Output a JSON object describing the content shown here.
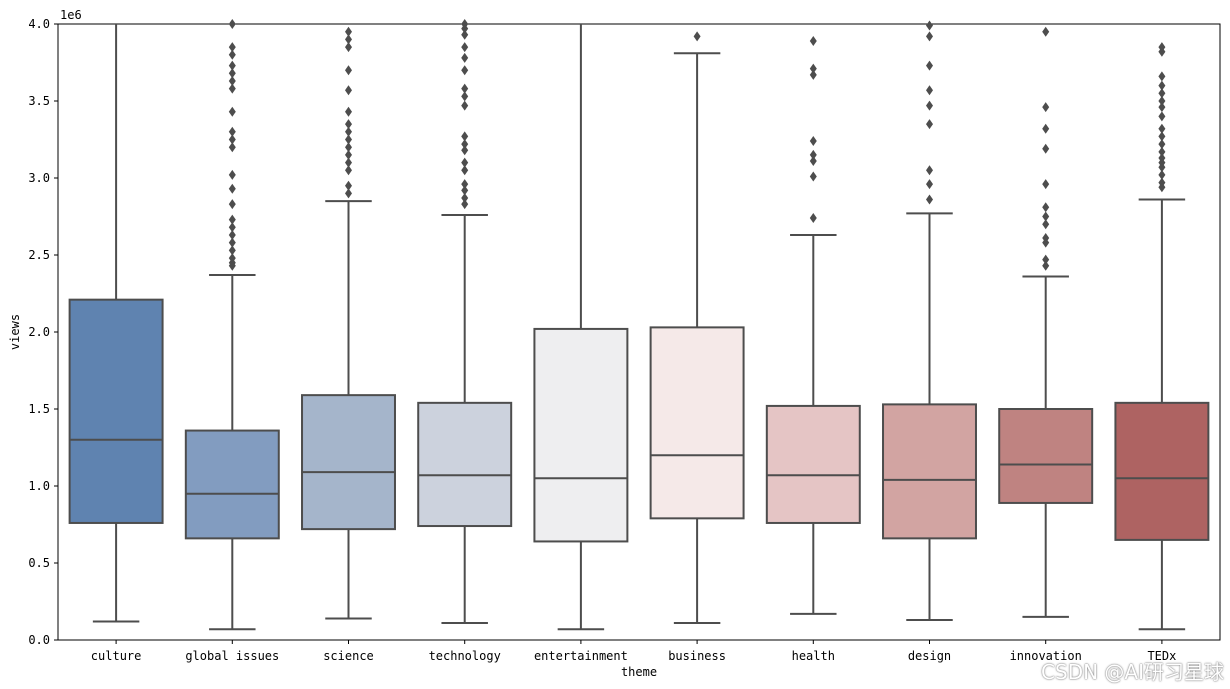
{
  "chart_data": {
    "type": "box",
    "title": "",
    "xlabel": "theme",
    "ylabel": "views",
    "y_offset_label": "1e6",
    "ylim": [
      0,
      4.0
    ],
    "yticks": [
      "0.0",
      "0.5",
      "1.0",
      "1.5",
      "2.0",
      "2.5",
      "3.0",
      "3.5",
      "4.0"
    ],
    "categories": [
      "culture",
      "global issues",
      "science",
      "technology",
      "entertainment",
      "business",
      "health",
      "design",
      "innovation",
      "TEDx"
    ],
    "colors": [
      "#5f83b0",
      "#829cc0",
      "#a5b5cb",
      "#ccd2dd",
      "#eeeef0",
      "#f5e9e8",
      "#e5c5c5",
      "#d2a4a2",
      "#bf8381",
      "#ae6362"
    ],
    "boxes": [
      {
        "name": "culture",
        "q1": 0.76,
        "median": 1.3,
        "q3": 2.21,
        "whisker_low": 0.12,
        "whisker_high": 4.0,
        "outliers": []
      },
      {
        "name": "global issues",
        "q1": 0.66,
        "median": 0.95,
        "q3": 1.36,
        "whisker_low": 0.07,
        "whisker_high": 2.37,
        "outliers": [
          2.43,
          2.45,
          2.48,
          2.53,
          2.58,
          2.63,
          2.68,
          2.73,
          2.83,
          2.93,
          3.02,
          3.2,
          3.25,
          3.3,
          3.43,
          3.58,
          3.63,
          3.68,
          3.73,
          3.8,
          3.85,
          4.0
        ]
      },
      {
        "name": "science",
        "q1": 0.72,
        "median": 1.09,
        "q3": 1.59,
        "whisker_low": 0.14,
        "whisker_high": 2.85,
        "outliers": [
          2.9,
          2.95,
          3.05,
          3.1,
          3.15,
          3.2,
          3.25,
          3.3,
          3.35,
          3.43,
          3.57,
          3.7,
          3.85,
          3.9,
          3.95
        ]
      },
      {
        "name": "technology",
        "q1": 0.74,
        "median": 1.07,
        "q3": 1.54,
        "whisker_low": 0.11,
        "whisker_high": 2.76,
        "outliers": [
          2.83,
          2.87,
          2.92,
          2.96,
          3.05,
          3.1,
          3.18,
          3.22,
          3.27,
          3.47,
          3.53,
          3.58,
          3.7,
          3.78,
          3.85,
          3.93,
          3.97,
          4.0
        ]
      },
      {
        "name": "entertainment",
        "q1": 0.64,
        "median": 1.05,
        "q3": 2.02,
        "whisker_low": 0.07,
        "whisker_high": 4.0,
        "outliers": []
      },
      {
        "name": "business",
        "q1": 0.79,
        "median": 1.2,
        "q3": 2.03,
        "whisker_low": 0.11,
        "whisker_high": 3.81,
        "outliers": [
          3.92
        ]
      },
      {
        "name": "health",
        "q1": 0.76,
        "median": 1.07,
        "q3": 1.52,
        "whisker_low": 0.17,
        "whisker_high": 2.63,
        "outliers": [
          2.74,
          3.01,
          3.11,
          3.15,
          3.24,
          3.67,
          3.71,
          3.89
        ]
      },
      {
        "name": "design",
        "q1": 0.66,
        "median": 1.04,
        "q3": 1.53,
        "whisker_low": 0.13,
        "whisker_high": 2.77,
        "outliers": [
          2.86,
          2.96,
          3.05,
          3.35,
          3.47,
          3.57,
          3.73,
          3.92,
          3.99
        ]
      },
      {
        "name": "innovation",
        "q1": 0.89,
        "median": 1.14,
        "q3": 1.5,
        "whisker_low": 0.15,
        "whisker_high": 2.36,
        "outliers": [
          2.43,
          2.47,
          2.58,
          2.61,
          2.7,
          2.75,
          2.81,
          2.96,
          3.19,
          3.32,
          3.46,
          3.95
        ]
      },
      {
        "name": "TEDx",
        "q1": 0.65,
        "median": 1.05,
        "q3": 1.54,
        "whisker_low": 0.07,
        "whisker_high": 2.86,
        "outliers": [
          2.94,
          2.97,
          3.02,
          3.07,
          3.1,
          3.13,
          3.17,
          3.22,
          3.27,
          3.32,
          3.4,
          3.46,
          3.5,
          3.55,
          3.6,
          3.66,
          3.82,
          3.85
        ]
      }
    ]
  },
  "watermark": "CSDN @AI研习星球"
}
